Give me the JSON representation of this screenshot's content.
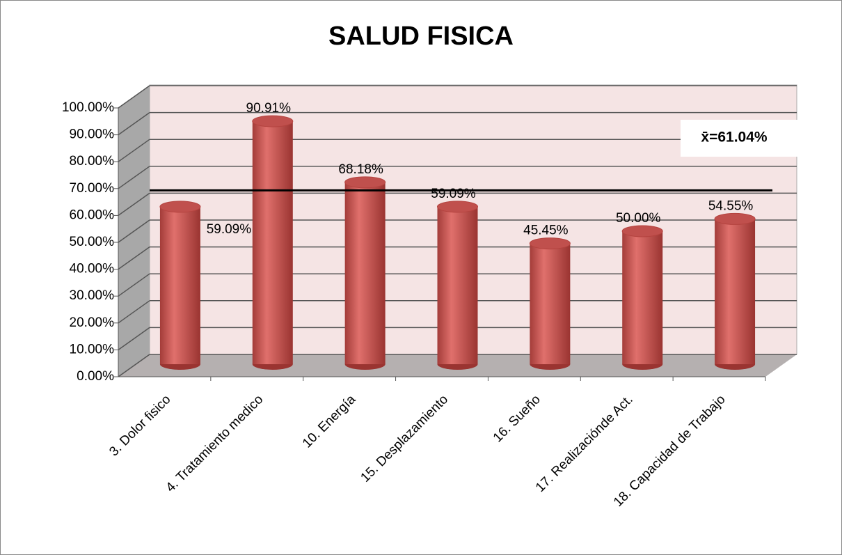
{
  "chart_data": {
    "type": "bar",
    "title": "SALUD FISICA",
    "categories": [
      "3. Dolor fisico",
      "4. Tratamiento medico",
      "10. Energía",
      "15. Desplazamiento",
      "16. Sueño",
      "17. Realizaciónde Act.",
      "18. Capacidad de Trabajo"
    ],
    "values": [
      59.09,
      90.91,
      68.18,
      59.09,
      45.45,
      50.0,
      54.55
    ],
    "value_labels": [
      "59.09%",
      "90.91%",
      "68.18%",
      "59.09%",
      "45.45%",
      "50.00%",
      "54.55%"
    ],
    "color": "#c0504d",
    "ylim": [
      0,
      100
    ],
    "yticks": [
      {
        "value": 0,
        "label": "0.00%"
      },
      {
        "value": 10,
        "label": "10.00%"
      },
      {
        "value": 20,
        "label": "20.00%"
      },
      {
        "value": 30,
        "label": "30.00%"
      },
      {
        "value": 40,
        "label": "40.00%"
      },
      {
        "value": 50,
        "label": "50.00%"
      },
      {
        "value": 60,
        "label": "60.00%"
      },
      {
        "value": 70,
        "label": "70.00%"
      },
      {
        "value": 80,
        "label": "80.00%"
      },
      {
        "value": 90,
        "label": "90.00%"
      },
      {
        "value": 100,
        "label": "100.00%"
      }
    ],
    "grid": true,
    "mean": {
      "value": 61.04,
      "label": "x̄=61.04%"
    }
  }
}
